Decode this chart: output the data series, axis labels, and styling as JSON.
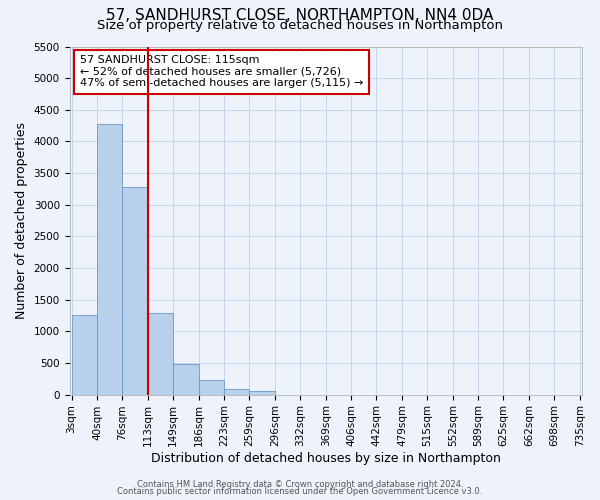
{
  "title": "57, SANDHURST CLOSE, NORTHAMPTON, NN4 0DA",
  "subtitle": "Size of property relative to detached houses in Northampton",
  "xlabel": "Distribution of detached houses by size in Northampton",
  "ylabel": "Number of detached properties",
  "bar_color": "#b8d0ea",
  "bar_edgecolor": "#6699cc",
  "bg_color": "#eef2fb",
  "grid_color": "#c5d5ee",
  "vline_x": 113,
  "vline_color": "#cc0000",
  "bin_edges": [
    3,
    40,
    76,
    113,
    149,
    186,
    223,
    259,
    296,
    332,
    369,
    406,
    442,
    479,
    515,
    552,
    589,
    625,
    662,
    698,
    735
  ],
  "bin_values": [
    1260,
    4280,
    3280,
    1290,
    480,
    230,
    85,
    50,
    0,
    0,
    0,
    0,
    0,
    0,
    0,
    0,
    0,
    0,
    0,
    0
  ],
  "ylim": [
    0,
    5500
  ],
  "yticks": [
    0,
    500,
    1000,
    1500,
    2000,
    2500,
    3000,
    3500,
    4000,
    4500,
    5000,
    5500
  ],
  "annotation_title": "57 SANDHURST CLOSE: 115sqm",
  "annotation_line1": "← 52% of detached houses are smaller (5,726)",
  "annotation_line2": "47% of semi-detached houses are larger (5,115) →",
  "annotation_box_facecolor": "#ffffff",
  "annotation_box_edgecolor": "#cc0000",
  "footer1": "Contains HM Land Registry data © Crown copyright and database right 2024.",
  "footer2": "Contains public sector information licensed under the Open Government Licence v3.0.",
  "title_fontsize": 11,
  "subtitle_fontsize": 9.5,
  "tick_label_fontsize": 7.5,
  "axis_label_fontsize": 9,
  "annotation_fontsize": 8,
  "footer_fontsize": 6
}
